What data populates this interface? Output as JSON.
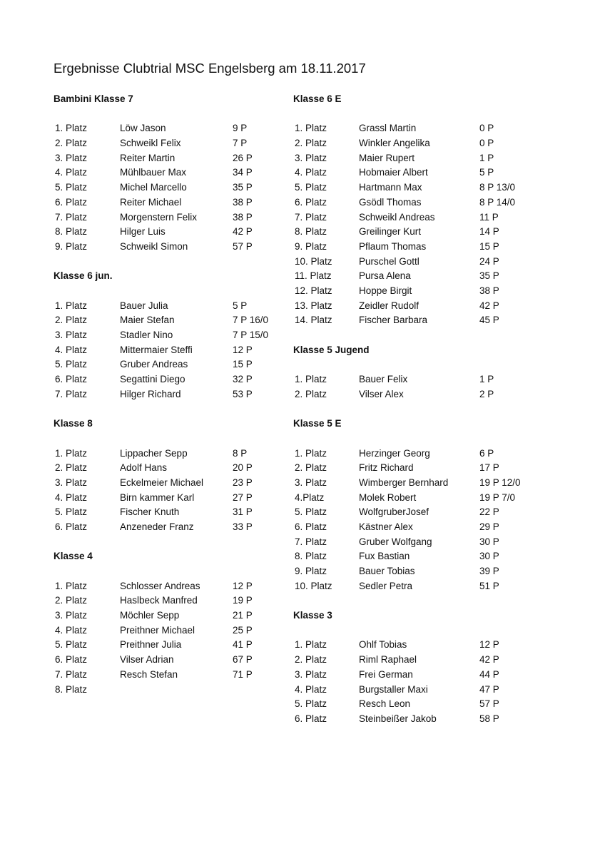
{
  "title": "Ergebnisse Clubtrial MSC Engelsberg am 18.11.2017",
  "columns": [
    [
      {
        "heading": "Bambini Klasse 7",
        "rows": [
          [
            "1. Platz",
            "Löw Jason",
            " 9 P"
          ],
          [
            "2. Platz",
            "Schweikl Felix",
            " 7 P"
          ],
          [
            "3. Platz",
            "Reiter Martin",
            "26 P"
          ],
          [
            "4. Platz",
            "Mühlbauer Max",
            "34 P"
          ],
          [
            "5. Platz",
            "Michel Marcello",
            "35 P"
          ],
          [
            "6. Platz",
            "Reiter Michael",
            "38 P"
          ],
          [
            "7. Platz",
            "Morgenstern Felix",
            "38 P"
          ],
          [
            "8. Platz",
            "Hilger Luis",
            "42 P"
          ],
          [
            "9. Platz",
            "Schweikl Simon",
            "57 P"
          ]
        ]
      },
      {
        "heading": "Klasse 6 jun.",
        "rows": [
          [
            "1. Platz",
            "Bauer Julia",
            " 5 P"
          ],
          [
            "2. Platz",
            "Maier Stefan",
            "7 P 16/0"
          ],
          [
            "3. Platz",
            "Stadler Nino",
            "7 P 15/0"
          ],
          [
            "4. Platz",
            "Mittermaier Steffi",
            "12 P"
          ],
          [
            "5. Platz",
            "Gruber Andreas",
            "15 P"
          ],
          [
            "6. Platz",
            "Segattini Diego",
            "32 P"
          ],
          [
            "7. Platz",
            "Hilger Richard",
            "53 P"
          ]
        ]
      },
      {
        "heading": "Klasse 8",
        "rows": [
          [
            "1. Platz",
            "Lippacher Sepp",
            " 8 P"
          ],
          [
            "2. Platz",
            "Adolf Hans",
            "20 P"
          ],
          [
            "3. Platz",
            "Eckelmeier Michael",
            "23 P"
          ],
          [
            "4. Platz",
            "Birn kammer Karl",
            "27 P"
          ],
          [
            "5. Platz",
            "Fischer Knuth",
            "31 P"
          ],
          [
            "6. Platz",
            "Anzeneder Franz",
            "33 P"
          ]
        ]
      },
      {
        "heading": "Klasse 4",
        "rows": [
          [
            "1. Platz",
            "Schlosser Andreas",
            "12 P"
          ],
          [
            "2. Platz",
            "Haslbeck Manfred",
            "19 P"
          ],
          [
            "3. Platz",
            "Möchler Sepp",
            "21 P"
          ],
          [
            "4. Platz",
            "Preithner Michael",
            "25 P"
          ],
          [
            "5. Platz",
            "Preithner Julia",
            "41 P"
          ],
          [
            "6. Platz",
            "Vilser Adrian",
            "67 P"
          ],
          [
            "7. Platz",
            "Resch Stefan",
            "71 P"
          ],
          [
            "8. Platz",
            "",
            ""
          ]
        ]
      }
    ],
    [
      {
        "heading": "Klasse 6 E",
        "rows": [
          [
            "1. Platz",
            "Grassl Martin",
            "0 P"
          ],
          [
            "2. Platz",
            "Winkler Angelika",
            "0 P"
          ],
          [
            "3. Platz",
            "Maier Rupert",
            "1 P"
          ],
          [
            "4. Platz",
            "Hobmaier Albert",
            "5 P"
          ],
          [
            "5. Platz",
            "Hartmann Max",
            "8 P 13/0"
          ],
          [
            "6. Platz",
            "Gsödl Thomas",
            "8 P 14/0"
          ],
          [
            "7. Platz",
            "Schweikl Andreas",
            "11 P"
          ],
          [
            "8. Platz",
            "Greilinger Kurt",
            "14 P"
          ],
          [
            "9. Platz",
            "Pflaum Thomas",
            "15 P"
          ],
          [
            "10. Platz",
            "Purschel Gottl",
            "24 P"
          ],
          [
            "11. Platz",
            "Pursa Alena",
            "35 P"
          ],
          [
            "12. Platz",
            "Hoppe Birgit",
            "38 P"
          ],
          [
            "13. Platz",
            "Zeidler Rudolf",
            "42 P"
          ],
          [
            "14. Platz",
            "Fischer Barbara",
            "45 P"
          ]
        ]
      },
      {
        "heading": "Klasse 5 Jugend",
        "rows": [
          [
            "1. Platz",
            "Bauer Felix",
            "1 P"
          ],
          [
            "2. Platz",
            "Vilser Alex",
            "2 P"
          ]
        ]
      },
      {
        "heading": "Klasse 5 E",
        "rows": [
          [
            "1. Platz",
            "Herzinger Georg",
            " 6 P"
          ],
          [
            "2. Platz",
            "Fritz Richard",
            "17 P"
          ],
          [
            "3. Platz",
            "Wimberger Bernhard",
            "19 P 12/0"
          ],
          [
            "4.Platz",
            "Molek Robert",
            "19 P 7/0"
          ],
          [
            "5. Platz",
            "WolfgruberJosef",
            "22 P"
          ],
          [
            "6. Platz",
            "Kästner Alex",
            "29 P"
          ],
          [
            "7. Platz",
            "Gruber Wolfgang",
            "30 P"
          ],
          [
            "8. Platz",
            "Fux Bastian",
            "30 P"
          ],
          [
            "9. Platz",
            "Bauer Tobias",
            "39 P"
          ],
          [
            "10. Platz",
            "Sedler Petra",
            "51 P"
          ]
        ]
      },
      {
        "heading": "Klasse 3",
        "rows": [
          [
            "1. Platz",
            "Ohlf Tobias",
            "12 P"
          ],
          [
            "2. Platz",
            "Riml Raphael",
            "42 P"
          ],
          [
            "3. Platz",
            "Frei German",
            "44 P"
          ],
          [
            "4. Platz",
            "Burgstaller Maxi",
            "47 P"
          ],
          [
            "5. Platz",
            "Resch Leon",
            "57 P"
          ],
          [
            "6. Platz",
            "Steinbeißer Jakob",
            "58 P"
          ]
        ]
      }
    ]
  ]
}
